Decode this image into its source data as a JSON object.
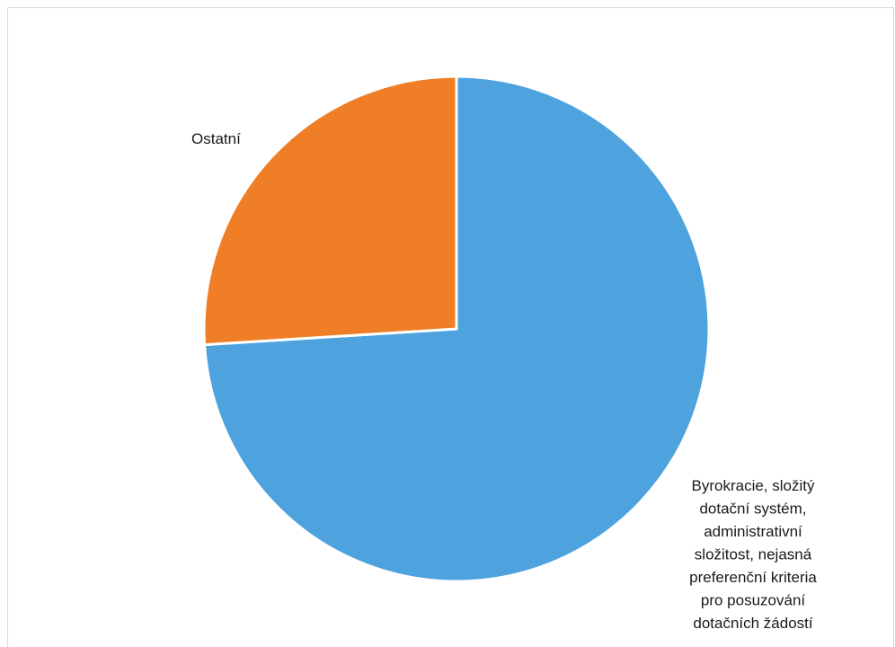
{
  "chart_data": {
    "type": "pie",
    "title": "",
    "slices": [
      {
        "label": "Byrokracie, složitý dotační systém, administrativní složitost, nejasná preferenční kriteria pro posuzování dotačních žádostí",
        "value": 74,
        "color": "#4ea3de"
      },
      {
        "label": "Ostatní",
        "value": 26,
        "color": "#f07e26"
      }
    ],
    "legend": "none"
  }
}
